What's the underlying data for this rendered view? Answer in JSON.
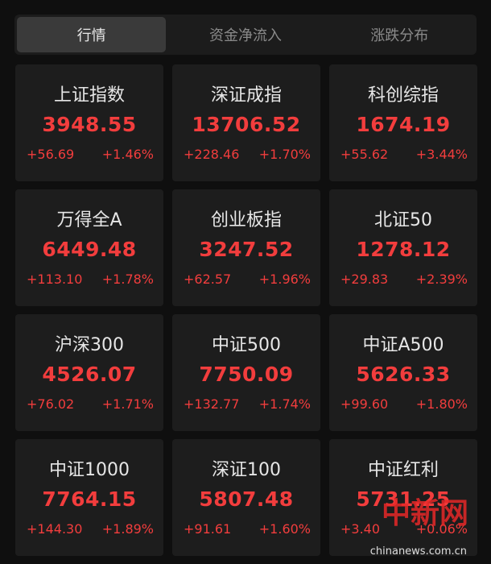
{
  "tabs": [
    "行情",
    "资金净流入",
    "涨跌分布"
  ],
  "cards": [
    {
      "name": "上证指数",
      "price": "3948.55",
      "change": "+56.69",
      "pct": "+1.46%"
    },
    {
      "name": "深证成指",
      "price": "13706.52",
      "change": "+228.46",
      "pct": "+1.70%"
    },
    {
      "name": "科创综指",
      "price": "1674.19",
      "change": "+55.62",
      "pct": "+3.44%"
    },
    {
      "name": "万得全A",
      "price": "6449.48",
      "change": "+113.10",
      "pct": "+1.78%"
    },
    {
      "name": "创业板指",
      "price": "3247.52",
      "change": "+62.57",
      "pct": "+1.96%"
    },
    {
      "name": "北证50",
      "price": "1278.12",
      "change": "+29.83",
      "pct": "+2.39%"
    },
    {
      "name": "沪深300",
      "price": "4526.07",
      "change": "+76.02",
      "pct": "+1.71%"
    },
    {
      "name": "中证500",
      "price": "7750.09",
      "change": "+132.77",
      "pct": "+1.74%"
    },
    {
      "name": "中证A500",
      "price": "5626.33",
      "change": "+99.60",
      "pct": "+1.80%"
    },
    {
      "name": "中证1000",
      "price": "7764.15",
      "change": "+144.30",
      "pct": "+1.89%"
    },
    {
      "name": "深证100",
      "price": "5807.48",
      "change": "+91.61",
      "pct": "+1.60%"
    },
    {
      "name": "中证红利",
      "price": "5731.25",
      "change": "+3.40",
      "pct": "+0.06%"
    }
  ],
  "watermark": {
    "logo": "中新网",
    "site": "chinanews.com.cn"
  }
}
